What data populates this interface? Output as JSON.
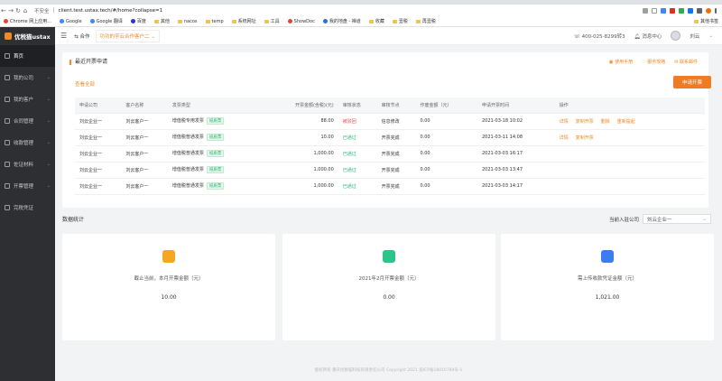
{
  "browser": {
    "secure_label": "不安全",
    "url": "client.test.ustax.tech/#/home?collapse=1",
    "bookmarks": [
      "Chrome 网上应用...",
      "Google",
      "Google 翻译",
      "百度",
      "其他",
      "nacos",
      "temp",
      "系统网址",
      "工具",
      "ShowDoc",
      "我的地盘 - 禅道",
      "收藏",
      "壹税",
      "再壹税"
    ],
    "bookmarks_right": "其他书签"
  },
  "sidebar": {
    "logo": "优税猫ustax",
    "items": [
      {
        "label": "首页",
        "active": true
      },
      {
        "label": "我的公司"
      },
      {
        "label": "我的客户"
      },
      {
        "label": "合同管理"
      },
      {
        "label": "收款管理"
      },
      {
        "label": "佐证材料"
      },
      {
        "label": "开票管理"
      },
      {
        "label": "完税凭证"
      }
    ]
  },
  "header": {
    "cooperation": "合作",
    "business": "功功的芋云合作客户二",
    "phone": "400-025-8299转3",
    "messages": "消息中心",
    "user": "刘云"
  },
  "invoice_panel": {
    "title": "最近开票申请",
    "actions": [
      "使用手册",
      "服务攻略",
      "联系邮件"
    ],
    "filter": "查看全部",
    "apply_button": "申请开票",
    "columns": [
      "申请公司",
      "客户名称",
      "发票类型",
      "开票金额(含税)(元)",
      "审核状态",
      "审核节点",
      "作废金额（元）",
      "申请开票时间",
      "操作"
    ],
    "rows": [
      {
        "company": "刘云企业一",
        "customer": "刘云客户一",
        "type": "增值税专用发票",
        "tag": "纸质票",
        "amount": "88.00",
        "status": "被驳回",
        "status_color": "red",
        "node": "信息修改",
        "void": "0.00",
        "time": "2021-03-18 10:02",
        "ops": [
          "详情",
          "复制开票",
          "删除",
          "重新提起"
        ]
      },
      {
        "company": "刘云企业一",
        "customer": "刘云客户一",
        "type": "增值税普通发票",
        "tag": "纸质票",
        "amount": "10.00",
        "status": "已通过",
        "status_color": "green",
        "node": "开票完成",
        "void": "0.00",
        "time": "2021-03-11 14:08",
        "ops": [
          "详情",
          "复制开票"
        ]
      },
      {
        "company": "刘云企业一",
        "customer": "刘云客户一",
        "type": "增值税普通发票",
        "tag": "纸质票",
        "amount": "1,000.00",
        "status": "已通过",
        "status_color": "green",
        "node": "开票完成",
        "void": "0.00",
        "time": "2021-03-03 16:17",
        "ops": []
      },
      {
        "company": "刘云企业一",
        "customer": "刘云客户一",
        "type": "增值税普通发票",
        "tag": "纸质票",
        "amount": "1,000.00",
        "status": "已通过",
        "status_color": "green",
        "node": "开票完成",
        "void": "0.00",
        "time": "2021-03-03 13:47",
        "ops": []
      },
      {
        "company": "刘云企业一",
        "customer": "刘云客户一",
        "type": "增值税普通发票",
        "tag": "纸质票",
        "amount": "1,000.00",
        "status": "已通过",
        "status_color": "green",
        "node": "开票完成",
        "void": "0.00",
        "time": "2021-03-03 14:17",
        "ops": []
      }
    ]
  },
  "stats": {
    "title": "数据统计",
    "company_label": "当前入驻公司",
    "company_value": "刘云企业一",
    "cards": [
      {
        "label": "截止当前，本月开票金额（元）",
        "value": "10.00",
        "color": "#f5a623"
      },
      {
        "label": "2021年2月开票金额（元）",
        "value": "0.00",
        "color": "#2bc48a"
      },
      {
        "label": "需上传收款凭证金额（元）",
        "value": "1,021.00",
        "color": "#3b7cf5"
      }
    ]
  },
  "footer": "版权所有 重庆优税猫科技有限责任公司 Copyright 2021 渝ICP备18010789号-1"
}
